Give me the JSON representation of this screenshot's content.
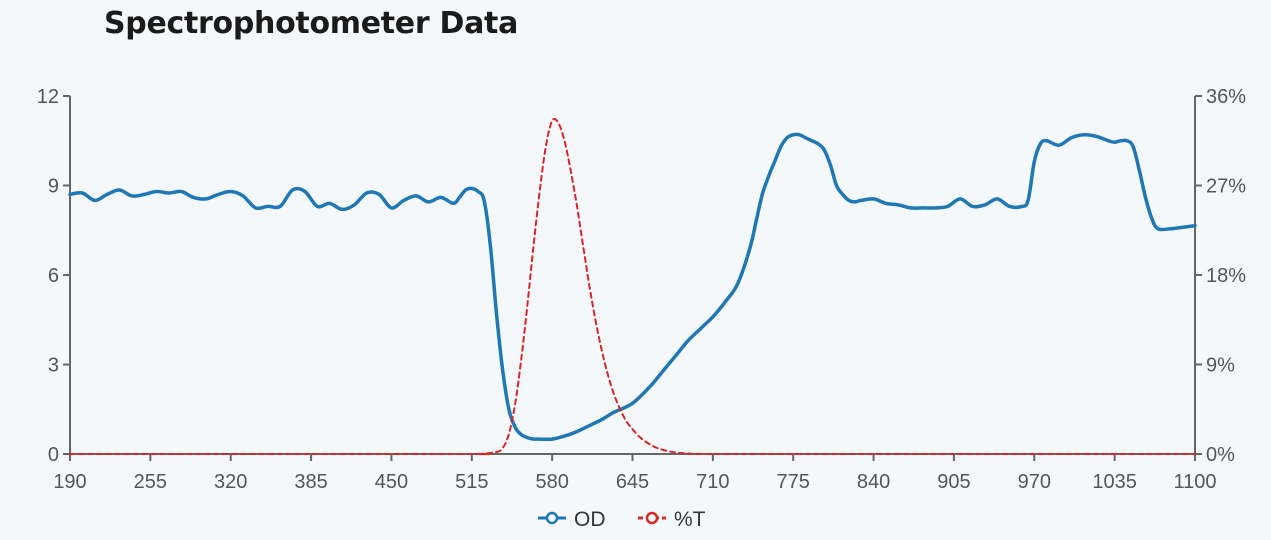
{
  "chart_data": {
    "type": "line",
    "title": "Spectrophotometer Data",
    "xlabel": "",
    "ylabel": "",
    "xlim": [
      190,
      1100
    ],
    "ylim": [
      0,
      12
    ],
    "y2lim": [
      0,
      36
    ],
    "x_ticks": [
      "190",
      "255",
      "320",
      "385",
      "450",
      "515",
      "580",
      "645",
      "710",
      "775",
      "840",
      "905",
      "970",
      "1035",
      "1100"
    ],
    "y_ticks": [
      "0",
      "3",
      "6",
      "9",
      "12"
    ],
    "y2_ticks": [
      "0%",
      "9%",
      "18%",
      "27%",
      "36%"
    ],
    "grid": false,
    "legend": "bottom-center",
    "series": [
      {
        "name": "OD",
        "axis": "left",
        "color": "#1f77b4",
        "style": "solid",
        "x": [
          190,
          200,
          210,
          220,
          230,
          240,
          250,
          260,
          270,
          280,
          290,
          300,
          310,
          320,
          330,
          340,
          350,
          360,
          370,
          380,
          390,
          400,
          410,
          420,
          430,
          440,
          450,
          460,
          470,
          480,
          490,
          500,
          505,
          510,
          515,
          520,
          525,
          530,
          535,
          540,
          545,
          550,
          555,
          560,
          565,
          570,
          580,
          590,
          600,
          610,
          620,
          630,
          645,
          660,
          670,
          680,
          690,
          700,
          710,
          720,
          730,
          740,
          745,
          750,
          755,
          760,
          765,
          770,
          775,
          780,
          785,
          790,
          795,
          800,
          805,
          810,
          815,
          820,
          825,
          830,
          840,
          850,
          860,
          870,
          880,
          890,
          900,
          910,
          920,
          930,
          940,
          950,
          960,
          965,
          970,
          975,
          980,
          990,
          1000,
          1010,
          1020,
          1030,
          1035,
          1040,
          1045,
          1050,
          1055,
          1060,
          1065,
          1070,
          1080,
          1090,
          1100
        ],
        "values": [
          8.7,
          8.75,
          8.5,
          8.7,
          8.85,
          8.65,
          8.7,
          8.8,
          8.75,
          8.8,
          8.6,
          8.55,
          8.7,
          8.8,
          8.65,
          8.25,
          8.3,
          8.3,
          8.85,
          8.8,
          8.3,
          8.4,
          8.2,
          8.35,
          8.75,
          8.7,
          8.25,
          8.5,
          8.65,
          8.45,
          8.6,
          8.4,
          8.6,
          8.85,
          8.9,
          8.8,
          8.5,
          7.0,
          4.7,
          2.8,
          1.5,
          0.9,
          0.65,
          0.55,
          0.5,
          0.5,
          0.5,
          0.6,
          0.75,
          0.95,
          1.15,
          1.4,
          1.7,
          2.3,
          2.8,
          3.3,
          3.8,
          4.2,
          4.6,
          5.1,
          5.7,
          6.9,
          7.8,
          8.7,
          9.3,
          9.8,
          10.3,
          10.6,
          10.7,
          10.7,
          10.6,
          10.5,
          10.4,
          10.2,
          9.7,
          9.0,
          8.7,
          8.5,
          8.45,
          8.5,
          8.55,
          8.4,
          8.35,
          8.25,
          8.25,
          8.25,
          8.3,
          8.55,
          8.3,
          8.35,
          8.55,
          8.3,
          8.3,
          8.5,
          9.8,
          10.4,
          10.5,
          10.35,
          10.6,
          10.7,
          10.65,
          10.5,
          10.45,
          10.5,
          10.5,
          10.3,
          9.5,
          8.6,
          7.9,
          7.55,
          7.55,
          7.6,
          7.65
        ]
      },
      {
        "name": "%T",
        "axis": "right",
        "color": "#d62728",
        "style": "dashed",
        "x": [
          190,
          500,
          520,
          535,
          540,
          545,
          550,
          555,
          560,
          565,
          570,
          575,
          580,
          585,
          590,
          595,
          600,
          605,
          610,
          615,
          620,
          625,
          630,
          635,
          640,
          645,
          650,
          655,
          660,
          665,
          670,
          675,
          680,
          690,
          700,
          720,
          760,
          900,
          1100
        ],
        "values": [
          0,
          0,
          0,
          0.2,
          0.6,
          2.0,
          5.0,
          9.5,
          15.0,
          21.0,
          26.5,
          31.0,
          33.5,
          33.3,
          31.5,
          28.5,
          25.0,
          21.0,
          17.0,
          13.5,
          10.5,
          8.0,
          6.0,
          4.5,
          3.3,
          2.5,
          1.8,
          1.3,
          0.9,
          0.6,
          0.4,
          0.25,
          0.15,
          0.05,
          0,
          0,
          0,
          0,
          0
        ]
      }
    ]
  }
}
